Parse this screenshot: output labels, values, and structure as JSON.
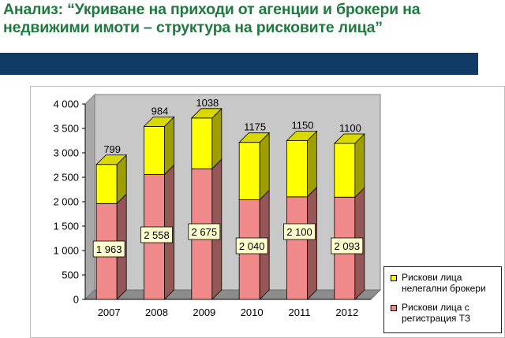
{
  "slide": {
    "title": "Анализ: “Укриване на приходи от агенции и брокери на недвижими имоти – структура на рисковите лица”"
  },
  "colors": {
    "title": "#1f7a3f",
    "bar_band": "#0f3b66",
    "series_bottom": "#f08a8a",
    "series_top": "#ffff00",
    "wall": "#c8c8c8",
    "floor": "#8c8c8c",
    "label_box": "#ffffcc"
  },
  "chart_data": {
    "type": "bar",
    "stacked": true,
    "three_d": true,
    "categories": [
      "2007",
      "2008",
      "2009",
      "2010",
      "2011",
      "2012"
    ],
    "series": [
      {
        "name": "Рискови лица с регистрация ТЗ",
        "values": [
          1963,
          2558,
          2675,
          2040,
          2100,
          2093
        ],
        "labels": [
          "1 963",
          "2 558",
          "2 675",
          "2 040",
          "2 100",
          "2 093"
        ]
      },
      {
        "name": "Рискови лица нелегални брокери",
        "values": [
          799,
          984,
          1038,
          1175,
          1150,
          1100
        ],
        "labels": [
          "799",
          "984",
          "1038",
          "1175",
          "1150",
          "1100"
        ]
      }
    ],
    "ylim": [
      0,
      4000
    ],
    "yticks": [
      0,
      500,
      1000,
      1500,
      2000,
      2500,
      3000,
      3500,
      4000
    ],
    "ytick_labels": [
      "0",
      "500",
      "1 000",
      "1 500",
      "2 000",
      "2 500",
      "3 000",
      "3 500",
      "4 000"
    ],
    "grid": false,
    "legend_position": "right-bottom",
    "legend": [
      {
        "line1": "Рискови лица",
        "line2": "нелегални брокери"
      },
      {
        "line1": "Рискови лица с",
        "line2": "регистрация ТЗ"
      }
    ]
  }
}
